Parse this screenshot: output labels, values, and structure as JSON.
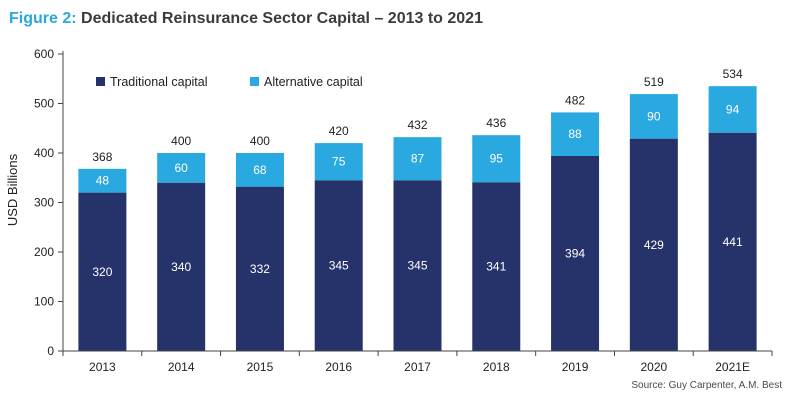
{
  "header": {
    "figure_label": "Figure 2:",
    "title": "Dedicated Reinsurance Sector Capital – 2013 to 2021"
  },
  "source": "Source: Guy Carpenter, A.M. Best",
  "colors": {
    "traditional": "#26336b",
    "alternative": "#2aa8e0",
    "axis": "#444444",
    "text": "#222222",
    "segment_text": "#ffffff"
  },
  "chart_data": {
    "type": "bar",
    "stacked": true,
    "title": "Dedicated Reinsurance Sector Capital – 2013 to 2021",
    "xlabel": "",
    "ylabel": "USD Billions",
    "ylim": [
      0,
      600
    ],
    "yticks": [
      0,
      100,
      200,
      300,
      400,
      500,
      600
    ],
    "grid": false,
    "legend_position": "top-left",
    "categories": [
      "2013",
      "2014",
      "2015",
      "2016",
      "2017",
      "2018",
      "2019",
      "2020",
      "2021E"
    ],
    "series": [
      {
        "name": "Traditional capital",
        "values": [
          320,
          340,
          332,
          345,
          345,
          341,
          394,
          429,
          441
        ]
      },
      {
        "name": "Alternative capital",
        "values": [
          48,
          60,
          68,
          75,
          87,
          95,
          88,
          90,
          94
        ]
      }
    ],
    "totals": [
      368,
      400,
      400,
      420,
      432,
      436,
      482,
      519,
      534
    ]
  }
}
